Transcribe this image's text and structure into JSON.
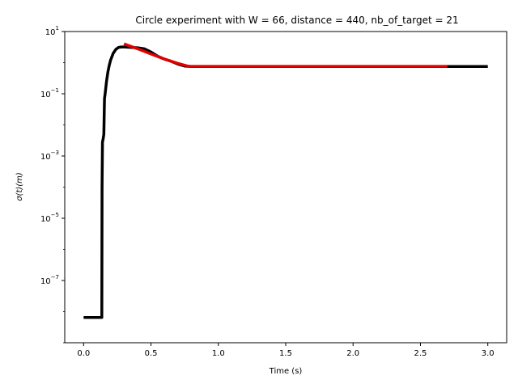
{
  "chart_data": {
    "type": "line",
    "title": "Circle experiment with W = 66, distance = 440, nb_of_target = 21",
    "xlabel": "Time (s)",
    "ylabel": "σ(t)(m)",
    "xlim": [
      -0.14,
      3.14
    ],
    "ylim": [
      1e-09,
      10
    ],
    "yscale": "log",
    "grid": false,
    "x_ticks": [
      0.0,
      0.5,
      1.0,
      1.5,
      2.0,
      2.5,
      3.0
    ],
    "x_tick_labels": [
      "0.0",
      "0.5",
      "1.0",
      "1.5",
      "2.0",
      "2.5",
      "3.0"
    ],
    "y_ticks": [
      1e-07,
      1e-05,
      0.001,
      0.1,
      10
    ],
    "y_tick_labels": [
      {
        "base": "10",
        "exp": "−7"
      },
      {
        "base": "10",
        "exp": "−5"
      },
      {
        "base": "10",
        "exp": "−3"
      },
      {
        "base": "10",
        "exp": "−1"
      },
      {
        "base": "10",
        "exp": "1"
      }
    ],
    "series": [
      {
        "color": "#000000",
        "x": [
          0.0,
          0.135,
          0.137,
          0.14,
          0.145,
          0.15,
          0.155,
          0.16,
          0.17,
          0.18,
          0.19,
          0.2,
          0.22,
          0.24,
          0.26,
          0.28,
          0.3,
          0.35,
          0.4,
          0.45,
          0.5,
          0.55,
          0.6,
          0.65,
          0.7,
          0.75,
          0.8,
          1.0,
          1.5,
          2.0,
          2.5,
          3.0
        ],
        "y": [
          6.5e-09,
          6.5e-09,
          0.0001,
          0.0028,
          0.0035,
          0.005,
          0.07,
          0.1,
          0.25,
          0.5,
          0.8,
          1.2,
          2.0,
          2.7,
          3.1,
          3.2,
          3.2,
          3.1,
          3.0,
          2.8,
          2.2,
          1.6,
          1.3,
          1.1,
          0.9,
          0.78,
          0.75,
          0.75,
          0.75,
          0.75,
          0.75,
          0.75
        ]
      },
      {
        "color": "#e00000",
        "x": [
          0.3,
          0.4,
          0.5,
          0.6,
          0.7,
          0.78,
          1.0,
          1.5,
          2.0,
          2.5,
          2.7
        ],
        "y": [
          4.0,
          2.8,
          1.9,
          1.3,
          0.95,
          0.76,
          0.76,
          0.76,
          0.76,
          0.76,
          0.76
        ]
      }
    ]
  }
}
